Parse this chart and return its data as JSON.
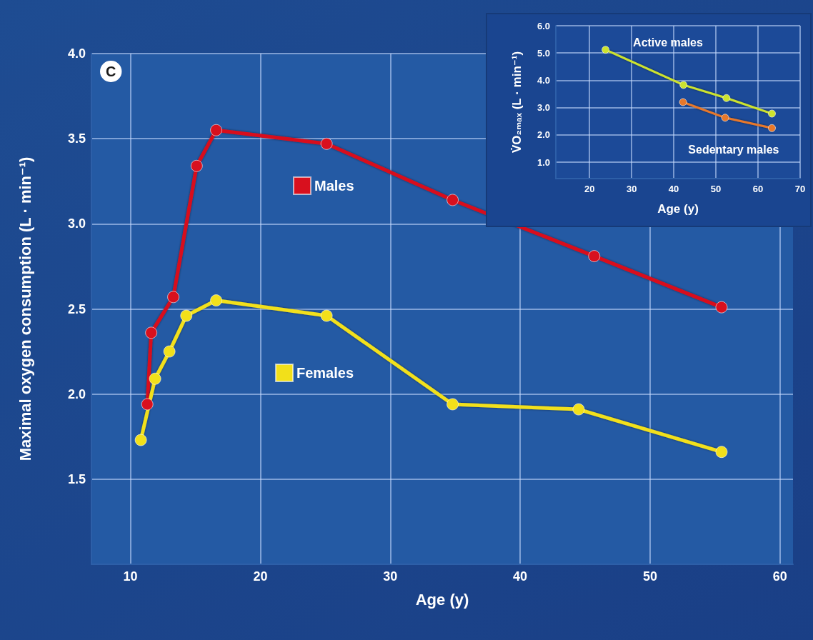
{
  "chart_data": [
    {
      "type": "line",
      "title": "C",
      "xlabel": "Age (y)",
      "ylabel": "Maximal oxygen consumption (L · min⁻¹)",
      "xlim": [
        7,
        61
      ],
      "xticks": [
        10,
        20,
        30,
        40,
        50,
        60
      ],
      "ylim": [
        1.0,
        4.0
      ],
      "yticks": [
        {
          "value": 1.5,
          "label": "1.5"
        },
        {
          "value": 2,
          "label": "2.0"
        },
        {
          "value": 2.5,
          "label": "2.5"
        },
        {
          "value": 3,
          "label": "3.0"
        },
        {
          "value": 3.5,
          "label": "3.5"
        },
        {
          "value": 4,
          "label": "4.0"
        }
      ],
      "grid": true,
      "legend": "center",
      "marker": "circle",
      "line_style": "solid",
      "series": [
        {
          "name": "Males",
          "color": "#d8101e",
          "x": [
            11.3,
            11.6,
            13.3,
            15.1,
            16.6,
            25.1,
            34.8,
            45.7,
            55.5
          ],
          "values": [
            1.94,
            2.36,
            2.57,
            3.34,
            3.55,
            3.47,
            3.14,
            2.81,
            2.51
          ]
        },
        {
          "name": "Females",
          "color": "#f2e01a",
          "x": [
            10.8,
            11.9,
            13.0,
            14.3,
            16.6,
            25.1,
            34.8,
            44.5,
            55.5
          ],
          "values": [
            1.73,
            2.09,
            2.25,
            2.46,
            2.55,
            2.46,
            1.94,
            1.91,
            1.66
          ]
        }
      ]
    },
    {
      "type": "line",
      "xlabel": "Age (y)",
      "ylabel": "V̇O₂ₘₐₓ (L · min⁻¹)",
      "xlim": [
        12,
        70
      ],
      "xticks": [
        20,
        30,
        40,
        50,
        60,
        70
      ],
      "ylim": [
        0.4,
        6.0
      ],
      "yticks": [
        {
          "value": 1,
          "label": "1.0"
        },
        {
          "value": 2,
          "label": "2.0"
        },
        {
          "value": 3,
          "label": "3.0"
        },
        {
          "value": 4,
          "label": "4.0"
        },
        {
          "value": 5,
          "label": "5.0"
        },
        {
          "value": 6,
          "label": "6.0"
        }
      ],
      "grid": true,
      "marker": "circle",
      "line_style": "solid",
      "series": [
        {
          "name": "Active males",
          "color": "#cde32e",
          "x": [
            23.8,
            42.3,
            52.5,
            63.3
          ],
          "values": [
            5.12,
            3.83,
            3.35,
            2.78
          ]
        },
        {
          "name": "Sedentary males",
          "color": "#e8782a",
          "x": [
            42.2,
            52.2,
            63.3
          ],
          "values": [
            3.2,
            2.63,
            2.25
          ]
        }
      ]
    }
  ]
}
